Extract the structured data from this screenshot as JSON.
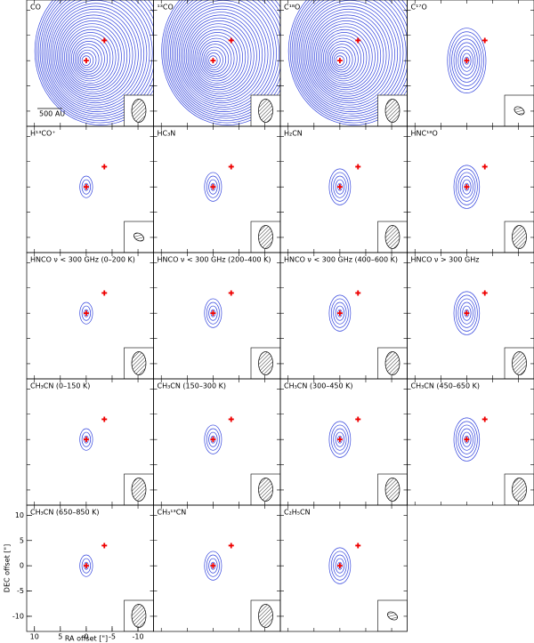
{
  "figure": {
    "panels": [
      {
        "label": "CO",
        "scale_bar": "500 AU"
      },
      {
        "label": "¹³CO"
      },
      {
        "label": "C¹⁸O"
      },
      {
        "label": "C¹⁷O"
      },
      {
        "label": "H¹³CO⁺"
      },
      {
        "label": "HC₃N"
      },
      {
        "label": "H₂CN"
      },
      {
        "label": "HNC¹⁸O"
      },
      {
        "label": "HNCO ν < 300 GHz  (0–200 K)"
      },
      {
        "label": "HNCO ν < 300 GHz  (200–400 K)"
      },
      {
        "label": "HNCO ν < 300 GHz  (400–600 K)"
      },
      {
        "label": "HNCO ν > 300 GHz"
      },
      {
        "label": "CH₃CN (0–150 K)"
      },
      {
        "label": "CH₃CN (150–300 K)"
      },
      {
        "label": "CH₃CN (300–450 K)"
      },
      {
        "label": "CH₃CN (450–650 K)"
      },
      {
        "label": "CH₃CN (650–850 K)"
      },
      {
        "label": "CH₃¹³CN"
      },
      {
        "label": "C₂H₅CN"
      }
    ],
    "x_label": "RA offset [\"]",
    "y_label": "DEC offset [\"]",
    "xlim": [
      11.5,
      -13
    ],
    "ylim": [
      -13,
      12
    ],
    "xticks": [
      10,
      5,
      0,
      -5,
      -10
    ],
    "yticks": [
      10,
      5,
      0,
      -5,
      -10
    ]
  }
}
